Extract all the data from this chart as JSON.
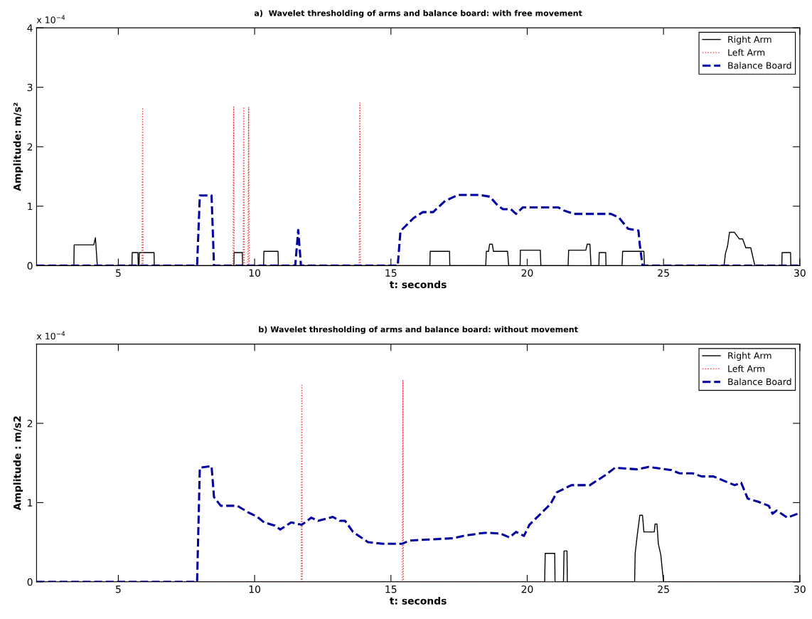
{
  "chart_data": [
    {
      "type": "line",
      "title": "a)  Wavelet thresholding of arms and balance board: with free movement",
      "xlabel": "t: seconds",
      "ylabel": "Amplitude: m/s²",
      "annotations": [
        "x 10$^{−4}$"
      ],
      "xlim": [
        2,
        30
      ],
      "xticks": [
        5,
        10,
        15,
        20,
        25,
        30
      ],
      "ylim": [
        0,
        4
      ],
      "yticks": [
        0,
        1,
        2,
        3,
        4
      ],
      "legend": "top right",
      "grid": false,
      "marker": "none",
      "series": [
        {
          "name": "Right Arm",
          "color": "#000000",
          "line_style": "solid",
          "x": [
            2,
            3.37,
            3.38,
            4.1,
            4.16,
            4.23,
            5.5,
            5.51,
            5.72,
            5.73,
            5.76,
            5.77,
            6.31,
            6.32,
            9.24,
            9.25,
            9.55,
            9.56,
            10.33,
            10.34,
            10.86,
            10.87,
            16.43,
            16.44,
            17.15,
            17.16,
            18.48,
            18.5,
            18.58,
            18.62,
            18.72,
            18.76,
            19.28,
            19.32,
            19.74,
            19.75,
            20.48,
            20.5,
            21.5,
            21.52,
            22.15,
            22.2,
            22.3,
            22.34,
            22.63,
            22.64,
            22.88,
            22.89,
            23.48,
            23.5,
            24.28,
            24.3,
            27.22,
            27.27,
            27.35,
            27.42,
            27.6,
            27.78,
            27.9,
            28.02,
            28.2,
            28.35,
            29.34,
            29.35,
            29.66,
            29.67,
            30
          ],
          "values": [
            0,
            0,
            0.35,
            0.35,
            0.47,
            0,
            0,
            0.22,
            0.22,
            0,
            0,
            0.22,
            0.22,
            0,
            0,
            0.22,
            0.22,
            0,
            0,
            0.24,
            0.24,
            0,
            0,
            0.24,
            0.24,
            0,
            0,
            0.24,
            0.24,
            0.36,
            0.36,
            0.24,
            0.24,
            0,
            0,
            0.26,
            0.26,
            0,
            0,
            0.26,
            0.26,
            0.36,
            0.36,
            0,
            0,
            0.22,
            0.22,
            0,
            0,
            0.24,
            0.24,
            0,
            0,
            0.2,
            0.33,
            0.56,
            0.56,
            0.45,
            0.45,
            0.3,
            0.3,
            0,
            0,
            0.22,
            0.22,
            0,
            0
          ]
        },
        {
          "name": "Left Arm",
          "color": "#ff3030",
          "line_style": "dotted",
          "x": [
            2,
            5.87,
            5.89,
            5.91,
            9.21,
            9.23,
            9.25,
            9.58,
            9.6,
            9.62,
            9.76,
            9.78,
            9.8,
            13.84,
            13.86,
            13.88,
            30
          ],
          "values": [
            0,
            0,
            2.66,
            0,
            0,
            2.67,
            0,
            0,
            2.67,
            0,
            0,
            2.67,
            0,
            0,
            2.74,
            0,
            0
          ]
        },
        {
          "name": "Balance Board",
          "color": "#0000a0",
          "line_style": "dashed",
          "x": [
            2,
            7.89,
            7.99,
            8.42,
            8.51,
            11.49,
            11.6,
            11.7,
            15.25,
            15.35,
            15.83,
            16.17,
            16.55,
            16.99,
            17.47,
            18.24,
            18.63,
            18.92,
            19.11,
            19.4,
            19.59,
            19.84,
            21.14,
            21.33,
            21.72,
            23.07,
            23.36,
            23.7,
            24.08,
            24.13,
            24.23,
            30
          ],
          "values": [
            0,
            0,
            1.18,
            1.18,
            0,
            0,
            0.6,
            0,
            0,
            0.58,
            0.8,
            0.9,
            0.9,
            1.09,
            1.19,
            1.19,
            1.16,
            1.01,
            0.95,
            0.95,
            0.87,
            0.98,
            0.98,
            0.93,
            0.87,
            0.87,
            0.81,
            0.62,
            0.59,
            0.35,
            0,
            0
          ]
        }
      ]
    },
    {
      "type": "line",
      "title": "b) Wavelet thresholding of arms and balance board: without movement",
      "xlabel": "t: seconds",
      "ylabel": "Amplitude : m/s2",
      "annotations": [
        "x 10$^{−4}$"
      ],
      "xlim": [
        2,
        30
      ],
      "xticks": [
        5,
        10,
        15,
        20,
        25,
        30
      ],
      "ylim": [
        0,
        3
      ],
      "yticks": [
        0,
        1,
        2
      ],
      "legend": "top right",
      "grid": false,
      "marker": "none",
      "series": [
        {
          "name": "Right Arm",
          "color": "#000000",
          "line_style": "solid",
          "x": [
            2,
            20.64,
            20.66,
            21.01,
            21.02,
            21.33,
            21.35,
            21.46,
            21.47,
            23.94,
            23.96,
            24.03,
            24.13,
            24.23,
            24.28,
            24.66,
            24.69,
            24.76,
            24.81,
            24.9,
            25.0,
            30
          ],
          "values": [
            0,
            0,
            0.36,
            0.36,
            0,
            0,
            0.39,
            0.39,
            0,
            0,
            0.36,
            0.57,
            0.84,
            0.84,
            0.63,
            0.63,
            0.73,
            0.73,
            0.48,
            0.34,
            0,
            0
          ]
        },
        {
          "name": "Left Arm",
          "color": "#ff3030",
          "line_style": "dotted",
          "x": [
            2,
            11.71,
            11.73,
            11.75,
            15.42,
            15.44,
            15.46,
            30
          ],
          "values": [
            0,
            0,
            2.48,
            0,
            0,
            2.54,
            0,
            0
          ]
        },
        {
          "name": "Balance Board",
          "color": "#0000a0",
          "line_style": "dashed",
          "x": [
            2,
            7.89,
            7.99,
            8.42,
            8.51,
            8.76,
            9.36,
            9.75,
            10.1,
            10.35,
            10.74,
            10.94,
            11.34,
            11.73,
            12.08,
            12.33,
            12.87,
            13.12,
            13.32,
            13.61,
            14.16,
            14.7,
            15.4,
            15.69,
            16.12,
            17.28,
            17.66,
            18.24,
            18.53,
            19.02,
            19.35,
            19.59,
            19.88,
            20.08,
            20.85,
            21.09,
            21.62,
            22.3,
            22.88,
            23.22,
            24.03,
            24.45,
            25.29,
            25.58,
            26.06,
            26.4,
            26.83,
            27.61,
            27.85,
            28.09,
            28.48,
            28.86,
            29.0,
            29.15,
            29.54,
            29.92
          ],
          "values": [
            0,
            0,
            1.44,
            1.46,
            1.07,
            0.96,
            0.96,
            0.88,
            0.82,
            0.75,
            0.71,
            0.66,
            0.75,
            0.72,
            0.81,
            0.77,
            0.82,
            0.77,
            0.77,
            0.63,
            0.5,
            0.48,
            0.48,
            0.52,
            0.53,
            0.55,
            0.58,
            0.61,
            0.62,
            0.61,
            0.56,
            0.63,
            0.58,
            0.72,
            0.98,
            1.13,
            1.22,
            1.22,
            1.35,
            1.44,
            1.42,
            1.45,
            1.41,
            1.37,
            1.37,
            1.33,
            1.33,
            1.22,
            1.25,
            1.05,
            1.01,
            0.96,
            0.86,
            0.9,
            0.81,
            0.86
          ]
        }
      ]
    }
  ]
}
